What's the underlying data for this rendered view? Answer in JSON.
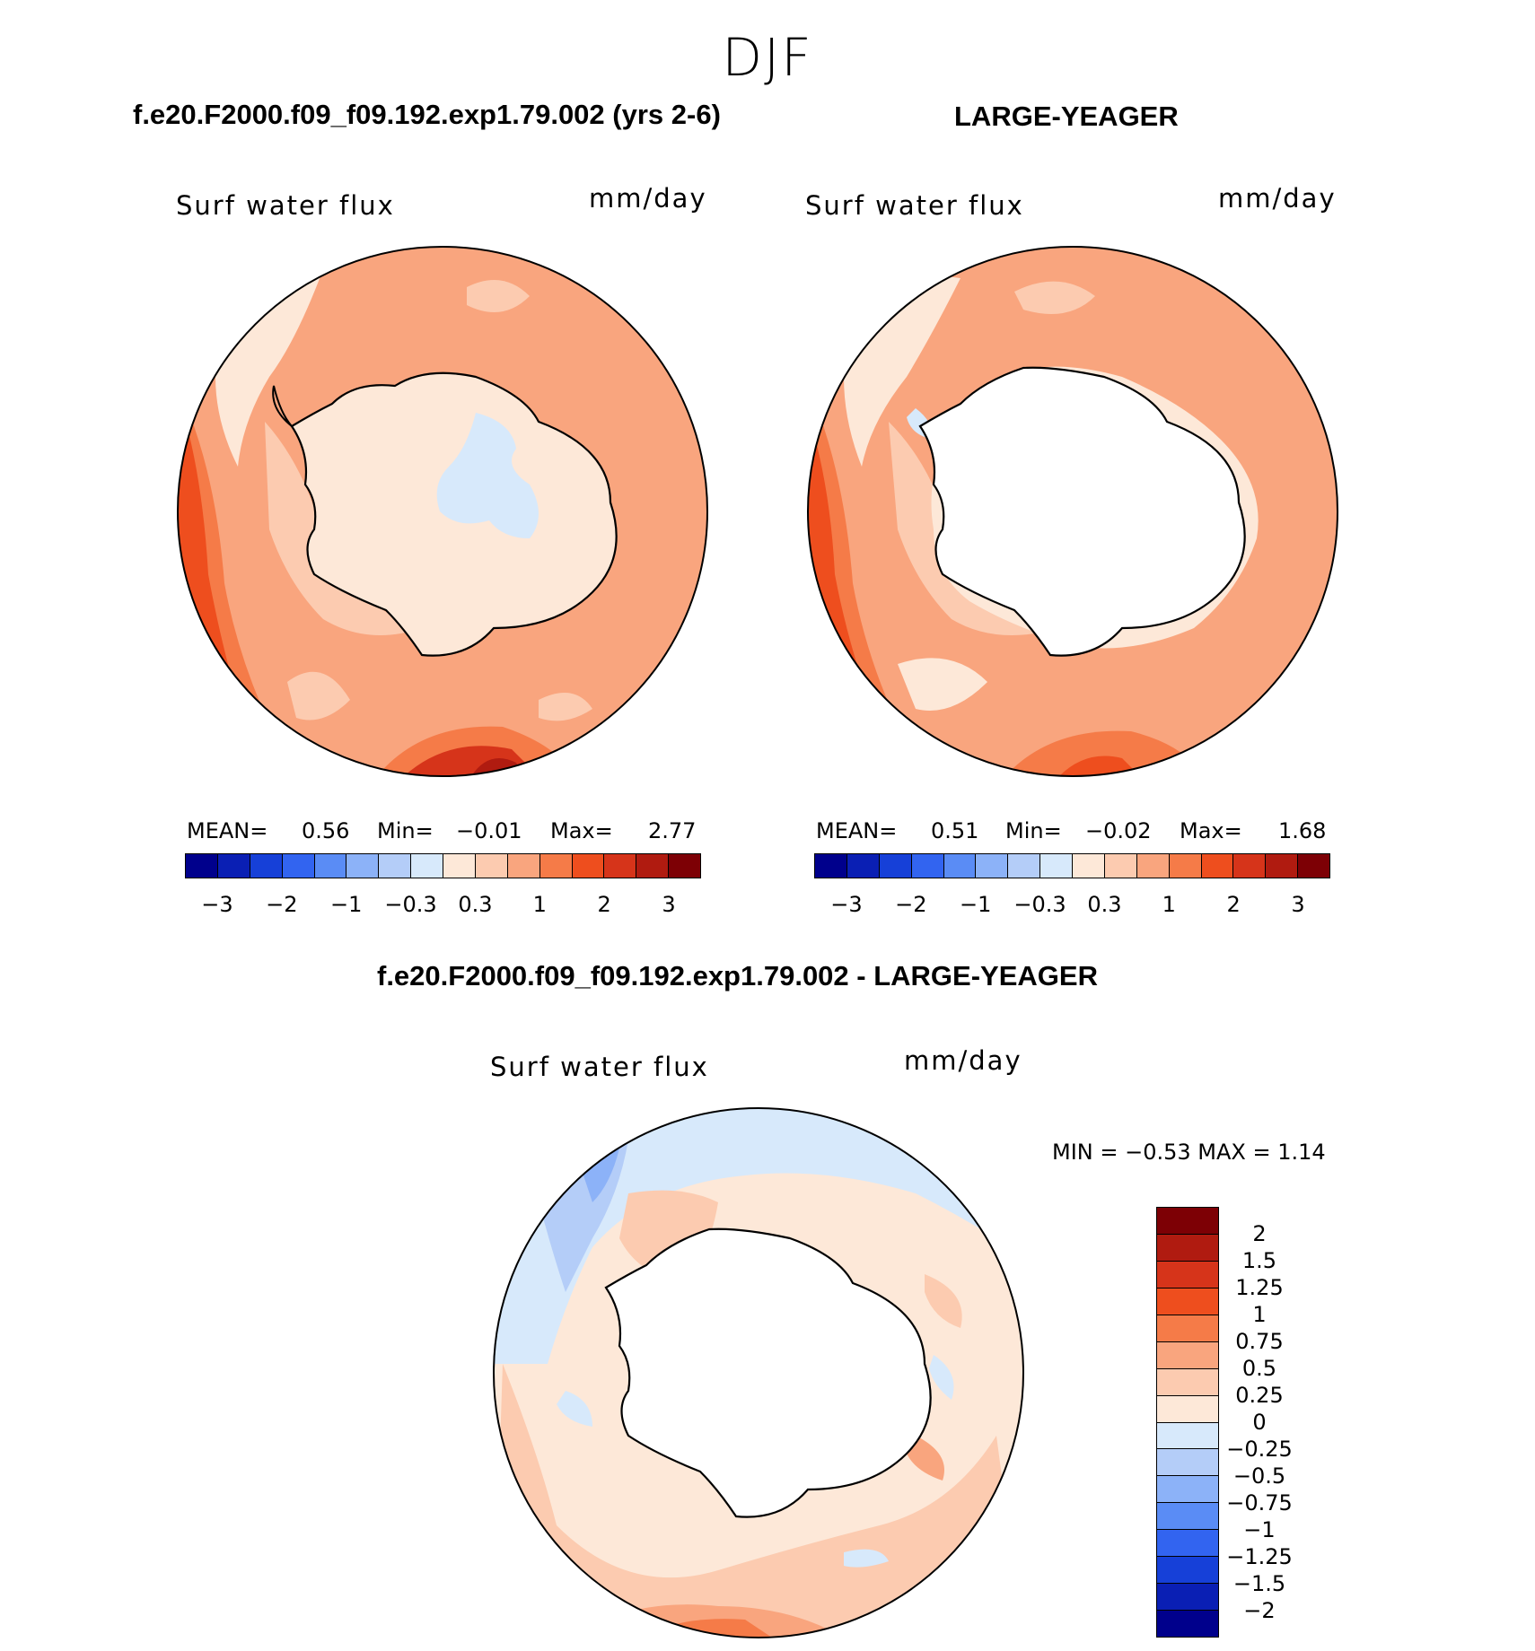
{
  "figure": {
    "season": "DJF",
    "left_title": "f.e20.F2000.f09_f09.192.exp1.79.002 (yrs 2-6)",
    "right_title": "LARGE-YEAGER",
    "diff_title": "f.e20.F2000.f09_f09.192.exp1.79.002 - LARGE-YEAGER"
  },
  "panels": {
    "left": {
      "variable": "Surf  water  flux",
      "units": "mm/day",
      "mean_label": "MEAN=",
      "mean": "0.56",
      "min_label": "Min=",
      "min": "−0.01",
      "max_label": "Max=",
      "max": "2.77"
    },
    "right": {
      "variable": "Surf  water  flux",
      "units": "mm/day",
      "mean_label": "MEAN=",
      "mean": "0.51",
      "min_label": "Min=",
      "min": "−0.02",
      "max_label": "Max=",
      "max": "1.68"
    },
    "diff": {
      "variable": "Surf  water  flux",
      "units": "mm/day",
      "minmax": "MIN  =    −0.53 MAX  =     1.14"
    }
  },
  "colorbars": {
    "abs_colors": [
      "#00008c",
      "#0a1fb4",
      "#1640d8",
      "#3264f0",
      "#5a8cf5",
      "#8cb2f8",
      "#b4cdf8",
      "#d7e9fb",
      "#fde8d8",
      "#fccbb0",
      "#f9a57e",
      "#f57b48",
      "#ee4e1e",
      "#d6341a",
      "#b01b10",
      "#7d0005"
    ],
    "abs_ticks": [
      "−3",
      "−2",
      "−1",
      "−0.3",
      "0.3",
      "1",
      "2",
      "3"
    ],
    "diff_colors": [
      "#7d0005",
      "#b01b10",
      "#d6341a",
      "#ee4e1e",
      "#f57b48",
      "#f9a57e",
      "#fccbb0",
      "#fde8d8",
      "#d7e9fb",
      "#b4cdf8",
      "#8cb2f8",
      "#5a8cf5",
      "#3264f0",
      "#1640d8",
      "#0a1fb4",
      "#00008c"
    ],
    "diff_ticks": [
      "2",
      "1.5",
      "1.25",
      "1",
      "0.75",
      "0.5",
      "0.25",
      "0",
      "−0.25",
      "−0.5",
      "−0.75",
      "−1",
      "−1.25",
      "−1.5",
      "−2"
    ]
  },
  "chart_data": [
    {
      "type": "heatmap",
      "title": "f.e20.F2000.f09_f09.192.exp1.79.002 (yrs 2-6)",
      "variable": "Surf water flux",
      "units": "mm/day",
      "projection": "south polar stereographic",
      "levels": [
        -3,
        -2.5,
        -2,
        -1.5,
        -1,
        -0.5,
        -0.3,
        0,
        0.3,
        0.5,
        1,
        1.5,
        2,
        2.5,
        3
      ],
      "summary": {
        "mean": 0.56,
        "min": -0.01,
        "max": 2.77
      }
    },
    {
      "type": "heatmap",
      "title": "LARGE-YEAGER",
      "variable": "Surf water flux",
      "units": "mm/day",
      "projection": "south polar stereographic",
      "levels": [
        -3,
        -2.5,
        -2,
        -1.5,
        -1,
        -0.5,
        -0.3,
        0,
        0.3,
        0.5,
        1,
        1.5,
        2,
        2.5,
        3
      ],
      "summary": {
        "mean": 0.51,
        "min": -0.02,
        "max": 1.68
      }
    },
    {
      "type": "heatmap",
      "title": "f.e20.F2000.f09_f09.192.exp1.79.002 - LARGE-YEAGER",
      "variable": "Surf water flux",
      "units": "mm/day",
      "projection": "south polar stereographic",
      "levels": [
        -2,
        -1.5,
        -1.25,
        -1,
        -0.75,
        -0.5,
        -0.25,
        0,
        0.25,
        0.5,
        0.75,
        1,
        1.25,
        1.5,
        2
      ],
      "summary": {
        "min": -0.53,
        "max": 1.14
      }
    }
  ]
}
